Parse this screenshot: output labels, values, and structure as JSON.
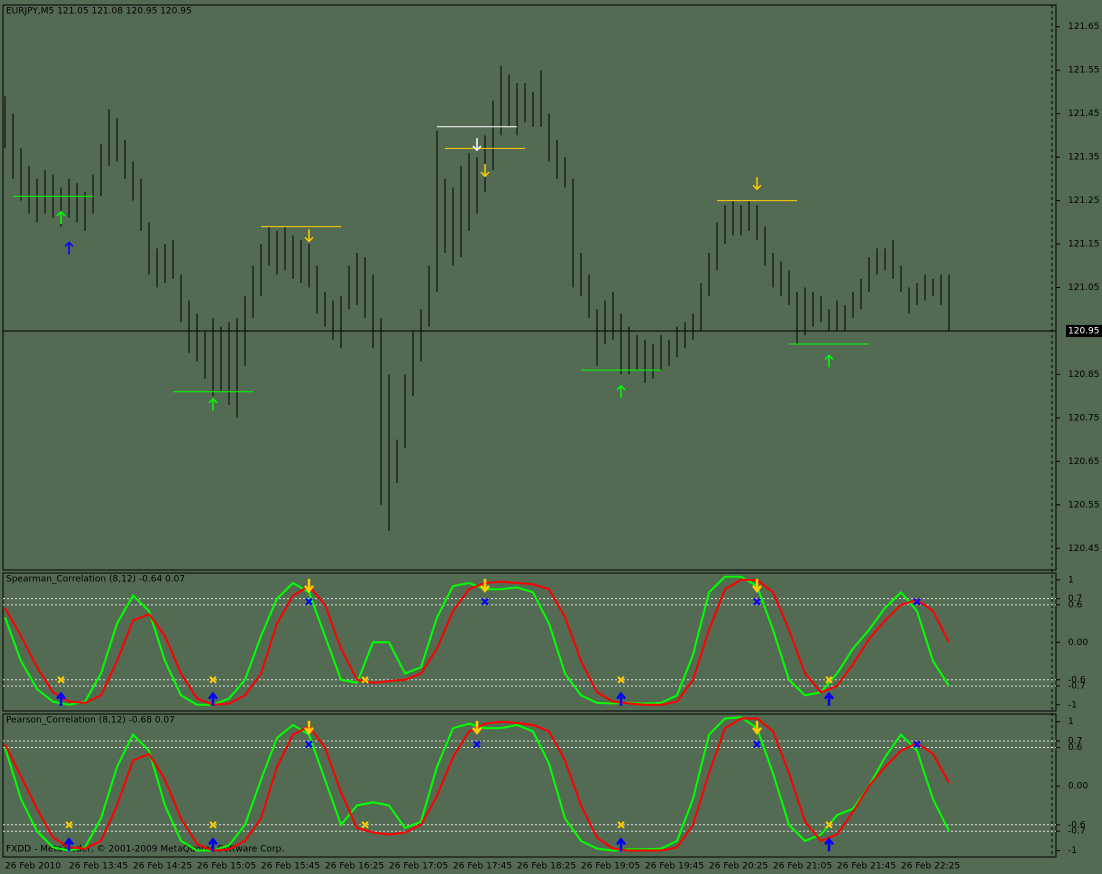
{
  "chart_data": [
    {
      "type": "hl-bars",
      "title": "EURJPY,M5  121.05 121.08 120.95 120.95",
      "color": "#000000",
      "background": "#536b53",
      "footer": "FXDD - MetaTrader, © 2001-2009 MetaQuotes Software Corp.",
      "categories": [
        "26 Feb 2010",
        null,
        null,
        null,
        null,
        null,
        null,
        null,
        "26 Feb 13:45",
        null,
        null,
        null,
        null,
        null,
        null,
        null,
        "26 Feb 14:25",
        null,
        null,
        null,
        null,
        null,
        null,
        null,
        "26 Feb 15:05",
        null,
        null,
        null,
        null,
        null,
        null,
        null,
        "26 Feb 15:45",
        null,
        null,
        null,
        null,
        null,
        null,
        null,
        "26 Feb 16:25",
        null,
        null,
        null,
        null,
        null,
        null,
        null,
        "26 Feb 17:05",
        null,
        null,
        null,
        null,
        null,
        null,
        null,
        "26 Feb 17:45",
        null,
        null,
        null,
        null,
        null,
        null,
        null,
        "26 Feb 18:25",
        null,
        null,
        null,
        null,
        null,
        null,
        null,
        "26 Feb 19:05",
        null,
        null,
        null,
        null,
        null,
        null,
        null,
        "26 Feb 19:45",
        null,
        null,
        null,
        null,
        null,
        null,
        null,
        "26 Feb 20:25",
        null,
        null,
        null,
        null,
        null,
        null,
        null,
        "26 Feb 21:05",
        null,
        null,
        null,
        null,
        null,
        null,
        null,
        "26 Feb 21:45",
        null,
        null,
        null,
        null,
        null,
        null,
        null,
        "26 Feb 22:25",
        null,
        null,
        null,
        null,
        null,
        null
      ],
      "high": [
        121.49,
        121.45,
        121.37,
        121.33,
        121.3,
        121.32,
        121.31,
        121.28,
        121.3,
        121.29,
        121.27,
        121.31,
        121.38,
        121.46,
        121.44,
        121.39,
        121.34,
        121.3,
        121.2,
        121.14,
        121.15,
        121.16,
        121.08,
        121.02,
        120.99,
        120.95,
        120.98,
        120.96,
        120.97,
        120.98,
        121.03,
        121.1,
        121.15,
        121.19,
        121.18,
        121.19,
        121.17,
        121.16,
        121.15,
        121.1,
        121.04,
        121.02,
        121.03,
        121.1,
        121.13,
        121.12,
        121.08,
        120.98,
        120.85,
        120.7,
        120.85,
        120.95,
        121.0,
        121.1,
        121.41,
        121.3,
        121.28,
        121.33,
        121.36,
        121.35,
        121.4,
        121.48,
        121.56,
        121.54,
        121.52,
        121.52,
        121.5,
        121.55,
        121.45,
        121.39,
        121.35,
        121.3,
        121.13,
        121.08,
        121.0,
        121.02,
        121.04,
        120.99,
        120.96,
        120.94,
        120.93,
        120.92,
        120.94,
        120.93,
        120.96,
        120.97,
        120.99,
        121.06,
        121.13,
        121.2,
        121.24,
        121.25,
        121.24,
        121.25,
        121.24,
        121.19,
        121.13,
        121.11,
        121.09,
        121.04,
        121.05,
        121.04,
        121.03,
        121.0,
        121.02,
        121.01,
        121.04,
        121.07,
        121.12,
        121.14,
        121.14,
        121.16,
        121.1,
        121.05,
        121.06,
        121.08,
        121.07,
        121.08,
        121.08
      ],
      "low": [
        121.37,
        121.3,
        121.25,
        121.22,
        121.2,
        121.22,
        121.21,
        121.19,
        121.21,
        121.2,
        121.18,
        121.22,
        121.26,
        121.33,
        121.34,
        121.3,
        121.25,
        121.18,
        121.08,
        121.05,
        121.06,
        121.07,
        120.97,
        120.9,
        120.88,
        120.84,
        120.8,
        120.81,
        120.78,
        120.75,
        120.87,
        120.98,
        121.03,
        121.1,
        121.08,
        121.09,
        121.07,
        121.06,
        121.05,
        120.99,
        120.96,
        120.93,
        120.91,
        121.0,
        121.01,
        120.98,
        120.91,
        120.55,
        120.49,
        120.6,
        120.68,
        120.8,
        120.88,
        120.96,
        121.04,
        121.13,
        121.1,
        121.12,
        121.18,
        121.22,
        121.27,
        121.32,
        121.4,
        121.42,
        121.4,
        121.43,
        121.42,
        121.42,
        121.34,
        121.3,
        121.28,
        121.05,
        121.03,
        120.98,
        120.87,
        120.92,
        120.93,
        120.85,
        120.85,
        120.86,
        120.83,
        120.84,
        120.86,
        120.87,
        120.89,
        120.91,
        120.93,
        120.95,
        121.03,
        121.09,
        121.15,
        121.17,
        121.17,
        121.18,
        121.16,
        121.1,
        121.05,
        121.03,
        121.01,
        120.92,
        120.94,
        120.96,
        120.97,
        120.95,
        120.95,
        120.95,
        120.98,
        121.0,
        121.04,
        121.08,
        121.09,
        121.07,
        121.04,
        120.99,
        121.01,
        121.02,
        121.03,
        121.01,
        120.95
      ],
      "current_price": 120.95,
      "ylim": [
        120.4,
        121.7
      ],
      "yticks": [
        121.65,
        121.55,
        121.45,
        121.35,
        121.25,
        121.15,
        121.05,
        120.85,
        120.75,
        120.65,
        120.55,
        120.45
      ],
      "levels": [
        {
          "bar": 6,
          "price": 121.26,
          "color": "#00ff00"
        },
        {
          "bar": 26,
          "price": 120.81,
          "color": "#00ff00"
        },
        {
          "bar": 37,
          "price": 121.19,
          "color": "#ffcc00"
        },
        {
          "bar": 59,
          "price": 121.42,
          "color": "#ffffff"
        },
        {
          "bar": 60,
          "price": 121.37,
          "color": "#ffcc00"
        },
        {
          "bar": 77,
          "price": 120.86,
          "color": "#00ff00"
        },
        {
          "bar": 94,
          "price": 121.25,
          "color": "#ffcc00"
        },
        {
          "bar": 103,
          "price": 120.92,
          "color": "#00ff00"
        }
      ],
      "arrows": [
        {
          "bar": 7,
          "price": 121.21,
          "direction": "up",
          "color": "#00ff00"
        },
        {
          "bar": 8,
          "price": 121.14,
          "direction": "up",
          "color": "#0000ff"
        },
        {
          "bar": 26,
          "price": 120.78,
          "direction": "up",
          "color": "#00ff00"
        },
        {
          "bar": 38,
          "price": 121.17,
          "direction": "down",
          "color": "#ffcc00"
        },
        {
          "bar": 59,
          "price": 121.38,
          "direction": "down",
          "color": "#ffffff"
        },
        {
          "bar": 60,
          "price": 121.32,
          "direction": "down",
          "color": "#ffcc00"
        },
        {
          "bar": 77,
          "price": 120.81,
          "direction": "up",
          "color": "#00ff00"
        },
        {
          "bar": 94,
          "price": 121.29,
          "direction": "down",
          "color": "#ffcc00"
        },
        {
          "bar": 103,
          "price": 120.88,
          "direction": "up",
          "color": "#00ff00"
        }
      ]
    },
    {
      "type": "line",
      "title": "Spearman_Correlation (8,12) -0.64 0.07",
      "ylim": [
        -1.1,
        1.11
      ],
      "yticks": [
        1,
        0.7,
        0.6,
        {
          "value": 0,
          "label": "0.00"
        },
        -0.6,
        -0.7,
        -1
      ],
      "levels": [
        0.7,
        0.6,
        -0.6,
        -0.7
      ],
      "series": [
        {
          "color": "#00ff00",
          "values": [
            0.4,
            -0.3,
            -0.75,
            -0.95,
            -1.0,
            -0.95,
            -0.5,
            0.3,
            0.75,
            0.5,
            -0.3,
            -0.85,
            -1.0,
            -1.0,
            -0.9,
            -0.6,
            0.1,
            0.7,
            0.95,
            0.8,
            0.1,
            -0.6,
            -0.65,
            0.0,
            0.0,
            -0.5,
            -0.4,
            0.4,
            0.9,
            0.95,
            0.85,
            0.85,
            0.88,
            0.8,
            0.3,
            -0.5,
            -0.85,
            -0.97,
            -0.98,
            -0.97,
            -0.98,
            -0.97,
            -0.85,
            -0.2,
            0.8,
            1.05,
            1.05,
            0.9,
            0.2,
            -0.6,
            -0.85,
            -0.8,
            -0.5,
            -0.1,
            0.2,
            0.55,
            0.8,
            0.5,
            -0.3,
            -0.7
          ]
        },
        {
          "color": "#ff0000",
          "values": [
            0.55,
            0.1,
            -0.4,
            -0.8,
            -0.95,
            -0.97,
            -0.85,
            -0.3,
            0.35,
            0.45,
            0.1,
            -0.5,
            -0.9,
            -1.0,
            -0.98,
            -0.85,
            -0.5,
            0.3,
            0.75,
            0.9,
            0.6,
            -0.1,
            -0.6,
            -0.65,
            -0.62,
            -0.6,
            -0.5,
            -0.1,
            0.5,
            0.85,
            0.95,
            0.97,
            0.95,
            0.93,
            0.85,
            0.4,
            -0.3,
            -0.8,
            -0.95,
            -0.98,
            -1.0,
            -1.0,
            -0.95,
            -0.6,
            0.2,
            0.85,
            1.0,
            1.0,
            0.8,
            0.2,
            -0.5,
            -0.8,
            -0.7,
            -0.35,
            0.05,
            0.35,
            0.6,
            0.68,
            0.5,
            0.0
          ]
        }
      ],
      "marker_colors": {
        "cross_low": "#ffcc00",
        "arrow_low": "#0000ff",
        "cross_high": "#0000ff",
        "arrow_high": "#ffcc00"
      },
      "signals": [
        {
          "bar": 7,
          "cross": -0.6,
          "arrow": -0.92
        },
        {
          "bar": 26,
          "cross": -0.6,
          "arrow": -0.92
        },
        {
          "bar": 38,
          "arrow": 0.92,
          "cross": 0.65
        },
        {
          "bar": 45,
          "cross": -0.6
        },
        {
          "bar": 60,
          "arrow": 0.92,
          "cross": 0.65
        },
        {
          "bar": 77,
          "cross": -0.6,
          "arrow": -0.92
        },
        {
          "bar": 94,
          "arrow": 0.92,
          "cross": 0.65
        },
        {
          "bar": 103,
          "cross": -0.6,
          "arrow": -0.92
        },
        {
          "bar": 114,
          "cross": 0.65
        }
      ]
    },
    {
      "type": "line",
      "title": "Pearson_Correlation (8,12) -0.68 0.07",
      "ylim": [
        -1.1,
        1.12
      ],
      "yticks": [
        1,
        0.7,
        0.6,
        {
          "value": 0,
          "label": "0.00"
        },
        -0.6,
        -0.7,
        -1
      ],
      "levels": [
        0.7,
        0.6,
        -0.6,
        -0.7
      ],
      "series": [
        {
          "color": "#00ff00",
          "values": [
            0.6,
            -0.2,
            -0.7,
            -0.95,
            -1.0,
            -0.95,
            -0.5,
            0.3,
            0.8,
            0.55,
            -0.3,
            -0.85,
            -1.0,
            -1.0,
            -0.92,
            -0.6,
            0.1,
            0.75,
            0.95,
            0.8,
            0.1,
            -0.6,
            -0.3,
            -0.25,
            -0.3,
            -0.65,
            -0.55,
            0.3,
            0.9,
            0.97,
            0.9,
            0.9,
            0.95,
            0.85,
            0.35,
            -0.5,
            -0.85,
            -0.97,
            -1.0,
            -0.98,
            -0.98,
            -0.97,
            -0.85,
            -0.2,
            0.8,
            1.05,
            1.07,
            0.9,
            0.2,
            -0.6,
            -0.85,
            -0.75,
            -0.45,
            -0.35,
            0.0,
            0.45,
            0.8,
            0.55,
            -0.2,
            -0.7
          ]
        },
        {
          "color": "#ff0000",
          "values": [
            0.65,
            0.15,
            -0.35,
            -0.8,
            -0.95,
            -0.97,
            -0.85,
            -0.3,
            0.4,
            0.5,
            0.1,
            -0.5,
            -0.9,
            -1.0,
            -0.98,
            -0.85,
            -0.5,
            0.3,
            0.8,
            0.93,
            0.6,
            -0.1,
            -0.65,
            -0.72,
            -0.75,
            -0.72,
            -0.6,
            -0.15,
            0.45,
            0.85,
            0.97,
            1.0,
            0.98,
            0.95,
            0.85,
            0.4,
            -0.3,
            -0.8,
            -0.97,
            -1.0,
            -1.0,
            -1.0,
            -0.95,
            -0.6,
            0.2,
            0.9,
            1.05,
            1.05,
            0.85,
            0.2,
            -0.55,
            -0.85,
            -0.75,
            -0.4,
            0.0,
            0.3,
            0.55,
            0.67,
            0.5,
            0.05
          ]
        }
      ],
      "marker_colors": {
        "cross_low": "#ffcc00",
        "arrow_low": "#0000ff",
        "cross_high": "#0000ff",
        "arrow_high": "#ffcc00"
      },
      "signals": [
        {
          "bar": 8,
          "cross": -0.6,
          "arrow": -0.92
        },
        {
          "bar": 26,
          "cross": -0.6,
          "arrow": -0.92
        },
        {
          "bar": 38,
          "arrow": 0.92,
          "cross": 0.65
        },
        {
          "bar": 45,
          "cross": -0.6
        },
        {
          "bar": 59,
          "arrow": 0.92,
          "cross": 0.65
        },
        {
          "bar": 77,
          "cross": -0.6,
          "arrow": -0.92
        },
        {
          "bar": 94,
          "arrow": 0.92,
          "cross": 0.65
        },
        {
          "bar": 103,
          "cross": -0.6,
          "arrow": -0.92
        },
        {
          "bar": 114,
          "cross": 0.65
        }
      ]
    }
  ]
}
